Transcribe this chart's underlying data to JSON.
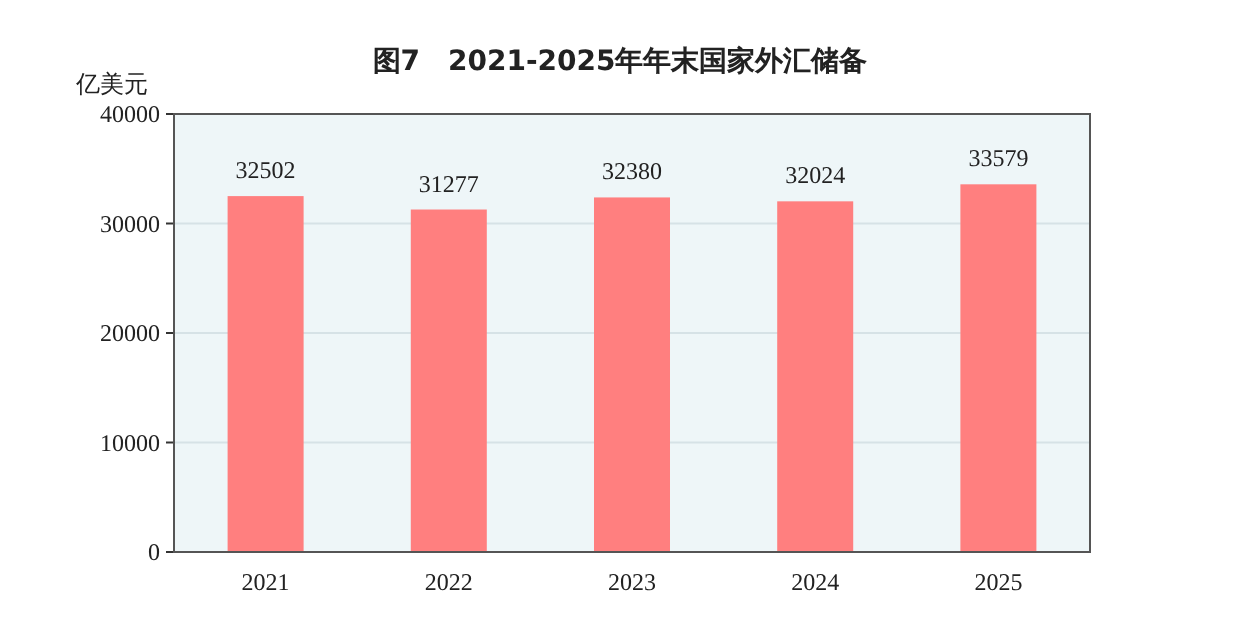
{
  "chart_data": {
    "type": "bar",
    "title": "图7　2021-2025年年末国家外汇储备",
    "ylabel": "亿美元",
    "categories": [
      "2021",
      "2022",
      "2023",
      "2024",
      "2025"
    ],
    "values": [
      32502,
      31277,
      32380,
      32024,
      33579
    ],
    "color": "#ff7f7f",
    "ylim": [
      0,
      40000
    ],
    "yticks": [
      0,
      10000,
      20000,
      30000,
      40000
    ],
    "grid": "y",
    "data_labels": true
  }
}
